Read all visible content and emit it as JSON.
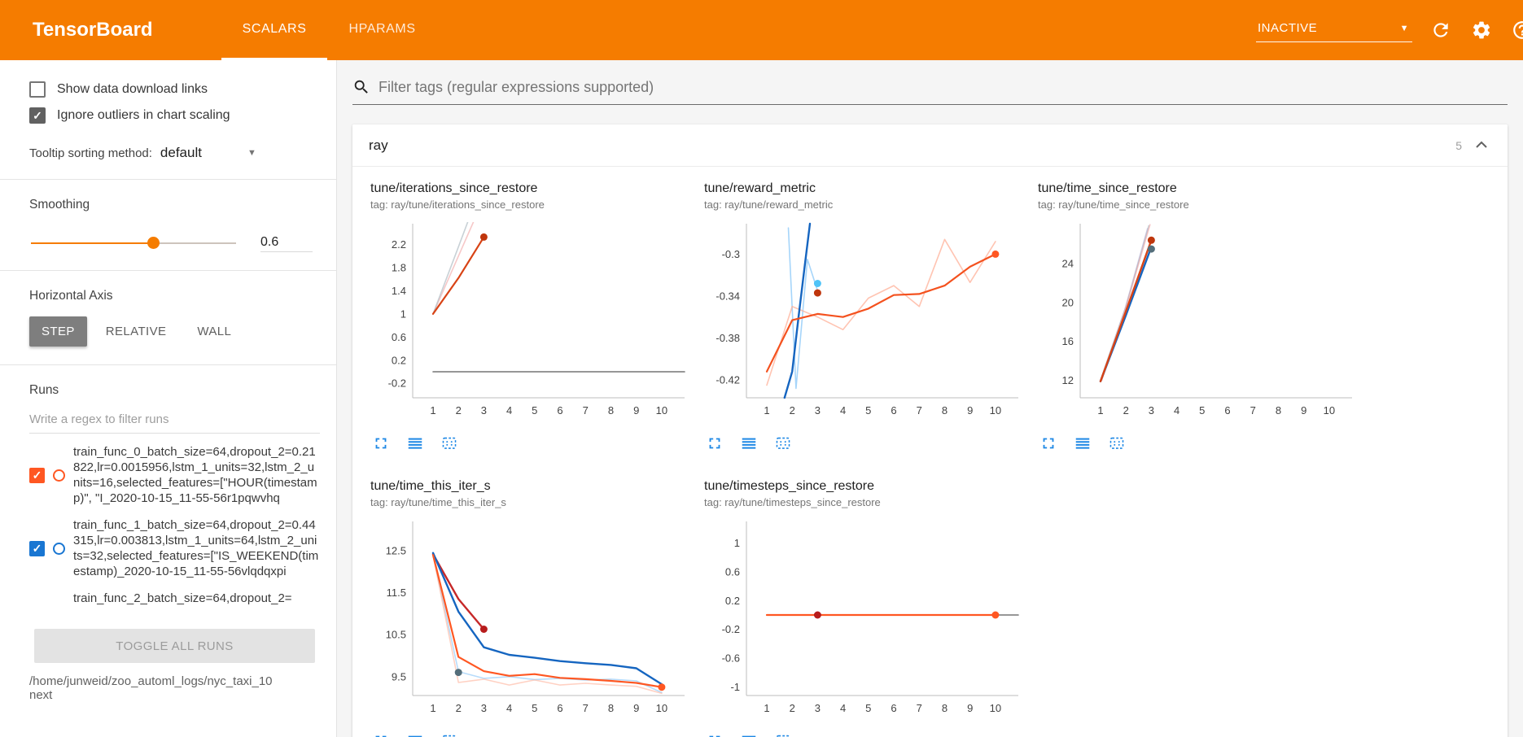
{
  "header": {
    "logo": "TensorBoard",
    "tabs": [
      {
        "label": "SCALARS",
        "active": true
      },
      {
        "label": "HPARAMS",
        "active": false
      }
    ],
    "status_dropdown": "INACTIVE"
  },
  "sidebar": {
    "show_download": {
      "label": "Show data download links",
      "checked": false
    },
    "ignore_outliers": {
      "label": "Ignore outliers in chart scaling",
      "checked": true
    },
    "tooltip_sorting": {
      "label": "Tooltip sorting method:",
      "value": "default"
    },
    "smoothing": {
      "label": "Smoothing",
      "value": "0.6",
      "percent": 60
    },
    "haxis": {
      "label": "Horizontal Axis",
      "options": [
        "STEP",
        "RELATIVE",
        "WALL"
      ],
      "selected": "STEP"
    },
    "runs": {
      "label": "Runs",
      "filter_placeholder": "Write a regex to filter runs",
      "items": [
        {
          "label": "train_func_0_batch_size=64,dropout_2=0.21822,lr=0.0015956,lstm_1_units=32,lstm_2_units=16,selected_features=[\"HOUR(timestamp)\", \"I_2020-10-15_11-55-56r1pqwvhq",
          "color": "#ff5722",
          "checked": true,
          "partial": false
        },
        {
          "label": "train_func_1_batch_size=64,dropout_2=0.44315,lr=0.003813,lstm_1_units=64,lstm_2_units=32,selected_features=[\"IS_WEEKEND(timestamp)_2020-10-15_11-55-56vlqdqxpi",
          "color": "#1976d2",
          "checked": true,
          "partial": false
        },
        {
          "label": "train_func_2_batch_size=64,dropout_2=",
          "color": "#c62828",
          "checked": true,
          "partial": true
        }
      ],
      "toggle_all": "TOGGLE ALL RUNS",
      "log_dir": "/home/junweid/zoo_automl_logs/nyc_taxi_10next"
    }
  },
  "main": {
    "filter_placeholder": "Filter tags (regular expressions supported)",
    "group": {
      "title": "ray",
      "count": "5"
    }
  },
  "chart_data": [
    {
      "type": "line",
      "title": "tune/iterations_since_restore",
      "tag": "tag: ray/tune/iterations_since_restore",
      "xlim": [
        0.2,
        10.9
      ],
      "ylim": [
        -0.45,
        2.56
      ],
      "xticks": [
        1,
        2,
        3,
        4,
        5,
        6,
        7,
        8,
        9,
        10
      ],
      "yticks": [
        2.2,
        1.8,
        1.4,
        1,
        0.6,
        0.2,
        -0.2
      ],
      "series": [
        {
          "color": "#ef9a9a",
          "opacity": 0.55,
          "width": 1.6,
          "points": [
            [
              1,
              1
            ],
            [
              2,
              2
            ],
            [
              3,
              3
            ]
          ]
        },
        {
          "color": "#b0bec5",
          "opacity": 0.7,
          "width": 1.6,
          "points": [
            [
              1,
              1
            ],
            [
              1.95,
              2.1
            ],
            [
              2.8,
              3.1
            ]
          ]
        },
        {
          "color": "#757575",
          "opacity": 1,
          "width": 1.6,
          "points": [
            [
              1,
              0
            ],
            [
              10.9,
              0
            ]
          ]
        },
        {
          "color": "#d84315",
          "opacity": 1,
          "width": 2.2,
          "points": [
            [
              1,
              1
            ],
            [
              2,
              1.62
            ],
            [
              3,
              2.33
            ]
          ]
        }
      ],
      "dots": [
        {
          "x": 3,
          "y": 2.33,
          "color": "#bf360c"
        }
      ]
    },
    {
      "type": "line",
      "title": "tune/reward_metric",
      "tag": "tag: ray/tune/reward_metric",
      "xlim": [
        0.2,
        10.9
      ],
      "ylim": [
        -0.437,
        -0.271
      ],
      "xticks": [
        1,
        2,
        3,
        4,
        5,
        6,
        7,
        8,
        9,
        10
      ],
      "yticks": [
        -0.3,
        -0.34,
        -0.38,
        -0.42
      ],
      "series": [
        {
          "color": "#90caf9",
          "opacity": 0.8,
          "width": 1.6,
          "points": [
            [
              1.85,
              -0.275
            ],
            [
              2.15,
              -0.428
            ],
            [
              2.6,
              -0.305
            ],
            [
              3,
              -0.335
            ]
          ]
        },
        {
          "color": "#ffab91",
          "opacity": 0.7,
          "width": 1.6,
          "points": [
            [
              1,
              -0.425
            ],
            [
              2,
              -0.35
            ],
            [
              3,
              -0.36
            ],
            [
              4,
              -0.372
            ],
            [
              5,
              -0.342
            ],
            [
              6,
              -0.33
            ],
            [
              7,
              -0.35
            ],
            [
              8,
              -0.286
            ],
            [
              9,
              -0.327
            ],
            [
              10,
              -0.288
            ]
          ]
        },
        {
          "color": "#1565c0",
          "opacity": 1,
          "width": 2.4,
          "points": [
            [
              1.7,
              -0.437
            ],
            [
              2,
              -0.412
            ],
            [
              2.25,
              -0.36
            ],
            [
              2.5,
              -0.31
            ],
            [
              2.7,
              -0.271
            ]
          ]
        },
        {
          "color": "#f4511e",
          "opacity": 1,
          "width": 2.2,
          "points": [
            [
              1,
              -0.412
            ],
            [
              2,
              -0.363
            ],
            [
              3,
              -0.357
            ],
            [
              4,
              -0.36
            ],
            [
              5,
              -0.352
            ],
            [
              6,
              -0.339
            ],
            [
              7,
              -0.338
            ],
            [
              8,
              -0.33
            ],
            [
              9,
              -0.312
            ],
            [
              10,
              -0.3
            ]
          ]
        }
      ],
      "dots": [
        {
          "x": 3,
          "y": -0.328,
          "color": "#4fc3f7"
        },
        {
          "x": 3,
          "y": -0.337,
          "color": "#bf360c"
        },
        {
          "x": 10,
          "y": -0.3,
          "color": "#ff5722"
        }
      ]
    },
    {
      "type": "line",
      "title": "tune/time_since_restore",
      "tag": "tag: ray/tune/time_since_restore",
      "xlim": [
        0.2,
        10.9
      ],
      "ylim": [
        10.2,
        28.1
      ],
      "xticks": [
        1,
        2,
        3,
        4,
        5,
        6,
        7,
        8,
        9,
        10
      ],
      "yticks": [
        24,
        20,
        16,
        12
      ],
      "series": [
        {
          "color": "#d1c4e9",
          "opacity": 0.8,
          "width": 1.6,
          "points": [
            [
              1,
              12
            ],
            [
              1.95,
              19.2
            ],
            [
              2.85,
              27.6
            ]
          ]
        },
        {
          "color": "#b0bec5",
          "opacity": 0.7,
          "width": 1.6,
          "points": [
            [
              1,
              12
            ],
            [
              2,
              19.6
            ],
            [
              2.9,
              27.9
            ]
          ]
        },
        {
          "color": "#ef9a9a",
          "opacity": 0.55,
          "width": 1.6,
          "points": [
            [
              1.05,
              12
            ],
            [
              2.05,
              19.9
            ],
            [
              2.95,
              28
            ]
          ]
        },
        {
          "color": "#1565c0",
          "opacity": 1,
          "width": 2.4,
          "points": [
            [
              1,
              11.9
            ],
            [
              2,
              18.7
            ],
            [
              3,
              25.7
            ]
          ]
        },
        {
          "color": "#d84315",
          "opacity": 1,
          "width": 2.4,
          "points": [
            [
              1,
              11.9
            ],
            [
              2,
              19.1
            ],
            [
              3,
              26.4
            ]
          ]
        }
      ],
      "dots": [
        {
          "x": 3,
          "y": 25.5,
          "color": "#546e7a"
        },
        {
          "x": 3,
          "y": 26.4,
          "color": "#bf360c"
        }
      ]
    },
    {
      "type": "line",
      "title": "tune/time_this_iter_s",
      "tag": "tag: ray/tune/time_this_iter_s",
      "xlim": [
        0.2,
        10.9
      ],
      "ylim": [
        9.05,
        13.2
      ],
      "xticks": [
        1,
        2,
        3,
        4,
        5,
        6,
        7,
        8,
        9,
        10
      ],
      "yticks": [
        12.5,
        11.5,
        10.5,
        9.5
      ],
      "series": [
        {
          "color": "#90caf9",
          "opacity": 0.65,
          "width": 1.6,
          "points": [
            [
              1,
              12.4
            ],
            [
              2,
              9.62
            ],
            [
              3,
              9.46
            ],
            [
              4,
              9.5
            ],
            [
              5,
              9.43
            ],
            [
              6,
              9.46
            ],
            [
              7,
              9.42
            ],
            [
              8,
              9.44
            ],
            [
              9,
              9.4
            ],
            [
              10,
              9.12
            ]
          ]
        },
        {
          "color": "#ffab91",
          "opacity": 0.55,
          "width": 1.6,
          "points": [
            [
              1,
              12.4
            ],
            [
              2,
              9.36
            ],
            [
              3,
              9.44
            ],
            [
              4,
              9.3
            ],
            [
              5,
              9.42
            ],
            [
              6,
              9.3
            ],
            [
              7,
              9.34
            ],
            [
              8,
              9.3
            ],
            [
              9,
              9.27
            ],
            [
              10,
              9.1
            ]
          ]
        },
        {
          "color": "#c62828",
          "opacity": 1,
          "width": 2.4,
          "points": [
            [
              1,
              12.42
            ],
            [
              2,
              11.35
            ],
            [
              3,
              10.63
            ]
          ]
        },
        {
          "color": "#1565c0",
          "opacity": 1,
          "width": 2.4,
          "points": [
            [
              1,
              12.45
            ],
            [
              2,
              11.05
            ],
            [
              3,
              10.2
            ],
            [
              4,
              10.02
            ],
            [
              5,
              9.95
            ],
            [
              6,
              9.87
            ],
            [
              7,
              9.82
            ],
            [
              8,
              9.78
            ],
            [
              9,
              9.7
            ],
            [
              10,
              9.32
            ]
          ]
        },
        {
          "color": "#ff5722",
          "opacity": 1,
          "width": 2.2,
          "points": [
            [
              1,
              12.4
            ],
            [
              2,
              9.97
            ],
            [
              3,
              9.63
            ],
            [
              4,
              9.52
            ],
            [
              5,
              9.56
            ],
            [
              6,
              9.47
            ],
            [
              7,
              9.44
            ],
            [
              8,
              9.4
            ],
            [
              9,
              9.35
            ],
            [
              10,
              9.25
            ]
          ]
        }
      ],
      "dots": [
        {
          "x": 3,
          "y": 10.63,
          "color": "#b71c1c"
        },
        {
          "x": 2,
          "y": 9.6,
          "color": "#546e7a"
        },
        {
          "x": 10,
          "y": 9.25,
          "color": "#ff5722"
        }
      ]
    },
    {
      "type": "line",
      "title": "tune/timesteps_since_restore",
      "tag": "tag: ray/tune/timesteps_since_restore",
      "xlim": [
        0.2,
        10.9
      ],
      "ylim": [
        -1.12,
        1.3
      ],
      "xticks": [
        1,
        2,
        3,
        4,
        5,
        6,
        7,
        8,
        9,
        10
      ],
      "yticks": [
        1,
        0.6,
        0.2,
        -0.2,
        -0.6,
        -1
      ],
      "series": [
        {
          "color": "#757575",
          "opacity": 1,
          "width": 1.6,
          "points": [
            [
              1,
              0
            ],
            [
              10.9,
              0
            ]
          ]
        },
        {
          "color": "#ff5722",
          "opacity": 1,
          "width": 2.2,
          "points": [
            [
              1,
              0
            ],
            [
              10,
              0
            ]
          ]
        }
      ],
      "dots": [
        {
          "x": 3,
          "y": 0,
          "color": "#b71c1c"
        },
        {
          "x": 10,
          "y": 0,
          "color": "#ff5722"
        }
      ]
    }
  ]
}
